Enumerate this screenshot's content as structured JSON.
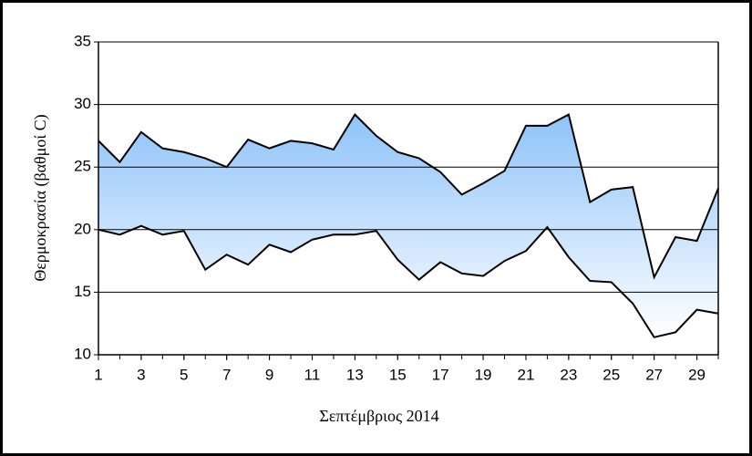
{
  "chart_data": {
    "type": "area_band",
    "x": [
      1,
      2,
      3,
      4,
      5,
      6,
      7,
      8,
      9,
      10,
      11,
      12,
      13,
      14,
      15,
      16,
      17,
      18,
      19,
      20,
      21,
      22,
      23,
      24,
      25,
      26,
      27,
      28,
      29,
      30
    ],
    "series": [
      {
        "color": "#000000",
        "values": [
          27.1,
          25.4,
          27.8,
          26.5,
          26.2,
          25.7,
          25.0,
          27.2,
          26.5,
          27.1,
          26.9,
          26.4,
          29.2,
          27.5,
          26.2,
          25.7,
          24.6,
          22.8,
          23.7,
          24.7,
          28.3,
          28.3,
          29.2,
          22.2,
          23.2,
          23.4,
          16.2,
          19.4,
          19.1,
          23.3
        ]
      },
      {
        "color": "#000000",
        "values": [
          20.0,
          19.6,
          20.3,
          19.6,
          19.9,
          16.8,
          18.0,
          17.2,
          18.8,
          18.2,
          19.2,
          19.6,
          19.6,
          19.9,
          17.6,
          16.0,
          17.4,
          16.5,
          16.3,
          17.5,
          18.3,
          20.2,
          17.8,
          15.9,
          15.8,
          14.1,
          11.4,
          11.8,
          13.6,
          13.3
        ]
      }
    ],
    "fill_colors": [
      "#8ec3f9",
      "#ffffff"
    ],
    "xlabel": "Σεπτέμβριος 2014",
    "ylabel": "Θερμοκρασία (βαθμοί C)",
    "xlim": [
      1,
      30
    ],
    "xticks": [
      1,
      3,
      5,
      7,
      9,
      11,
      13,
      15,
      17,
      19,
      21,
      23,
      25,
      27,
      29
    ],
    "ylim": [
      10,
      35
    ],
    "yticks": [
      10,
      15,
      20,
      25,
      30,
      35
    ],
    "grid": true
  }
}
